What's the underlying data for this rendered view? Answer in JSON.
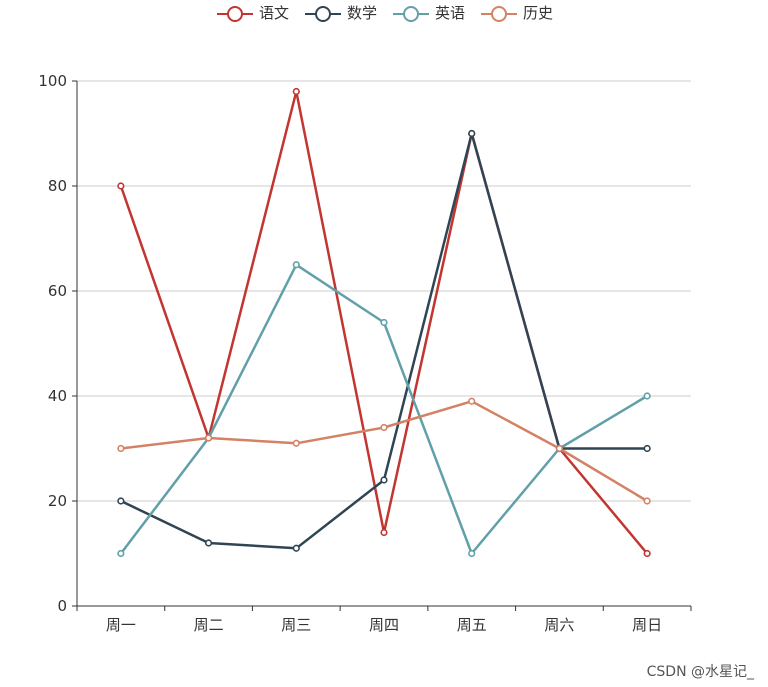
{
  "chart_data": {
    "type": "line",
    "categories": [
      "周一",
      "周二",
      "周三",
      "周四",
      "周五",
      "周六",
      "周日"
    ],
    "series": [
      {
        "name": "语文",
        "color": "#c23531",
        "values": [
          80,
          32,
          98,
          14,
          90,
          30,
          10
        ]
      },
      {
        "name": "数学",
        "color": "#2f4554",
        "values": [
          20,
          12,
          11,
          24,
          90,
          30,
          30
        ]
      },
      {
        "name": "英语",
        "color": "#61a0a8",
        "values": [
          10,
          32,
          65,
          54,
          10,
          30,
          40
        ]
      },
      {
        "name": "历史",
        "color": "#d48265",
        "values": [
          30,
          32,
          31,
          34,
          39,
          30,
          20
        ]
      }
    ],
    "ylim": [
      0,
      100
    ],
    "yticks": [
      0,
      20,
      40,
      60,
      80,
      100
    ],
    "grid": true,
    "legend_position": "top-center"
  },
  "watermark": "CSDN @水星记_"
}
